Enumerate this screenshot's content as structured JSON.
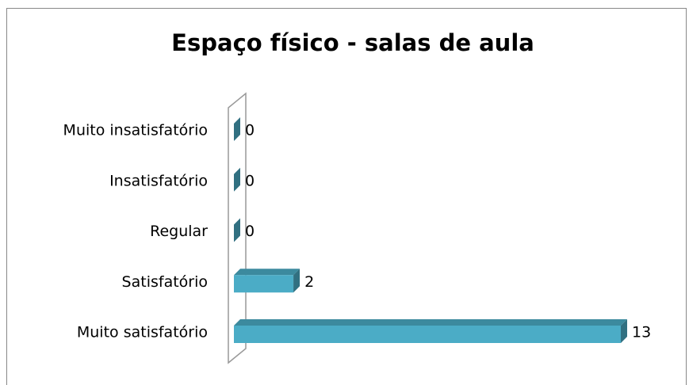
{
  "chart_data": {
    "type": "bar3d",
    "orientation": "horizontal",
    "title": "Espaço físico - salas de aula",
    "categories": [
      "Muito insatisfatório",
      "Insatisfatório",
      "Regular",
      "Satisfatório",
      "Muito satisfatório"
    ],
    "values": [
      0,
      0,
      0,
      2,
      13
    ],
    "color": "#4bacc6"
  }
}
